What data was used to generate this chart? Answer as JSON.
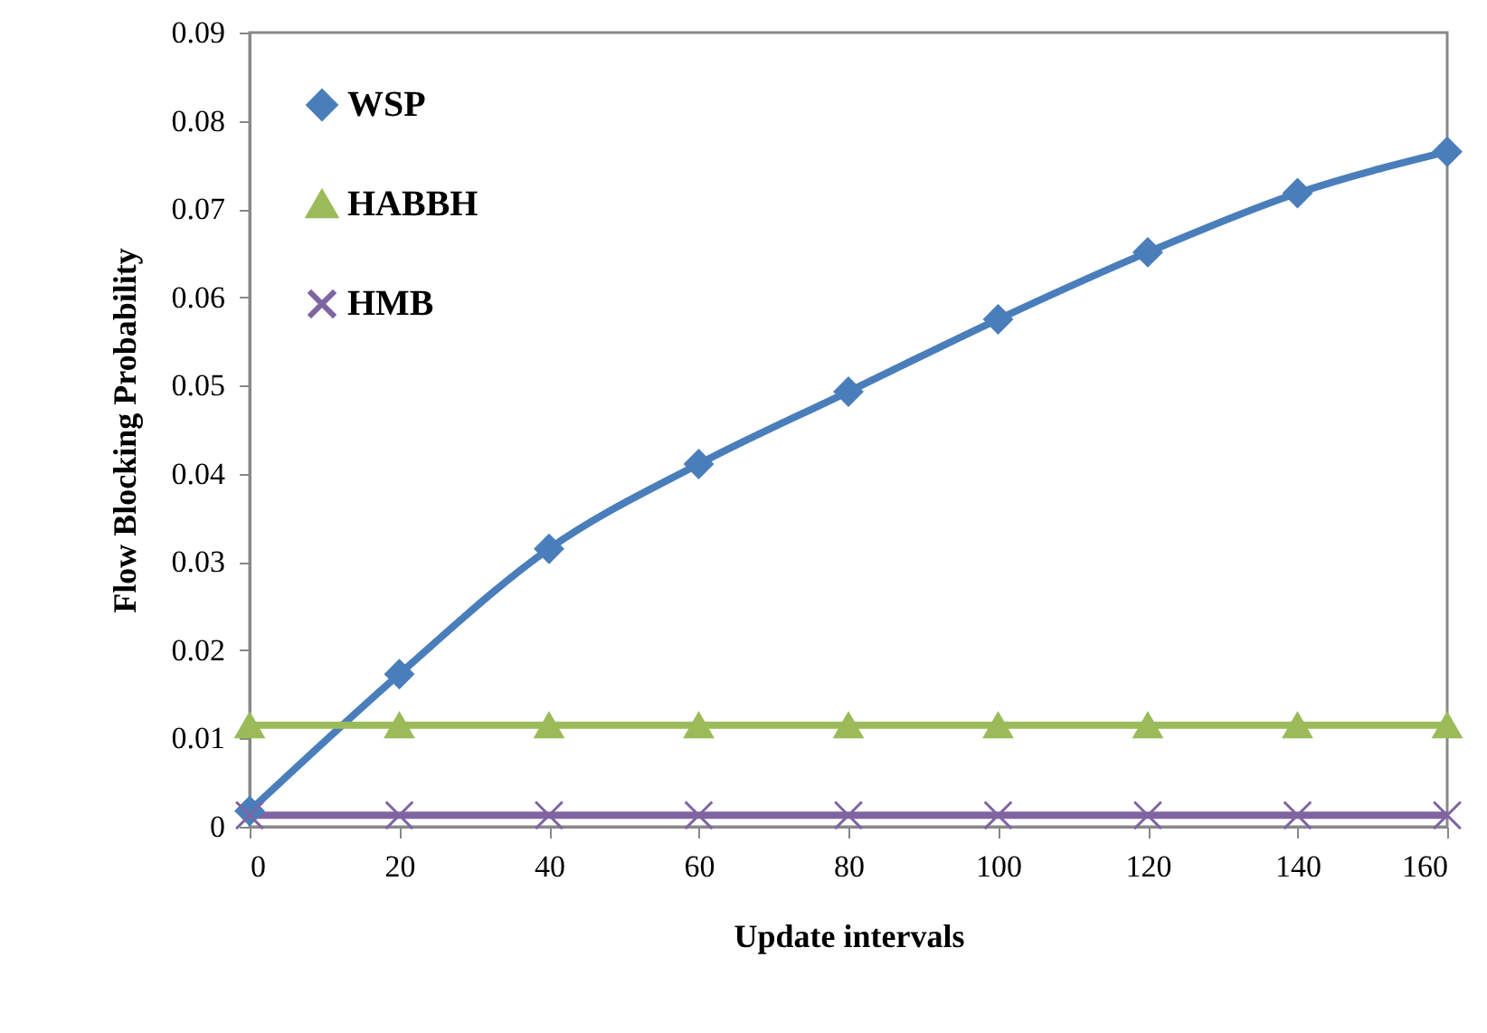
{
  "chart_data": {
    "type": "line",
    "xlabel": "Update intervals",
    "ylabel": "Flow Blocking Probability",
    "x": [
      0,
      20,
      40,
      60,
      80,
      100,
      120,
      140,
      160
    ],
    "series": [
      {
        "name": "WSP",
        "color": "#4a7ebb",
        "marker": "diamond",
        "values": [
          0.0018,
          0.0173,
          0.0315,
          0.0411,
          0.0493,
          0.0575,
          0.0651,
          0.0718,
          0.0765
        ]
      },
      {
        "name": "HABBH",
        "color": "#9bbb59",
        "marker": "triangle",
        "values": [
          0.0115,
          0.0115,
          0.0115,
          0.0115,
          0.0115,
          0.0115,
          0.0115,
          0.0115,
          0.0115
        ]
      },
      {
        "name": "HMB",
        "color": "#8064a2",
        "marker": "cross",
        "values": [
          0.0013,
          0.0013,
          0.0013,
          0.0013,
          0.0013,
          0.0013,
          0.0013,
          0.0013,
          0.0013
        ]
      }
    ],
    "xlim": [
      0,
      160
    ],
    "xticks": [
      0,
      20,
      40,
      60,
      80,
      100,
      120,
      140,
      160
    ],
    "ylim": [
      0,
      0.09
    ],
    "yticks": [
      0,
      0.01,
      0.02,
      0.03,
      0.04,
      0.05,
      0.06,
      0.07,
      0.08,
      0.09
    ],
    "grid": false,
    "legend": "top left",
    "line_style": "solid"
  }
}
